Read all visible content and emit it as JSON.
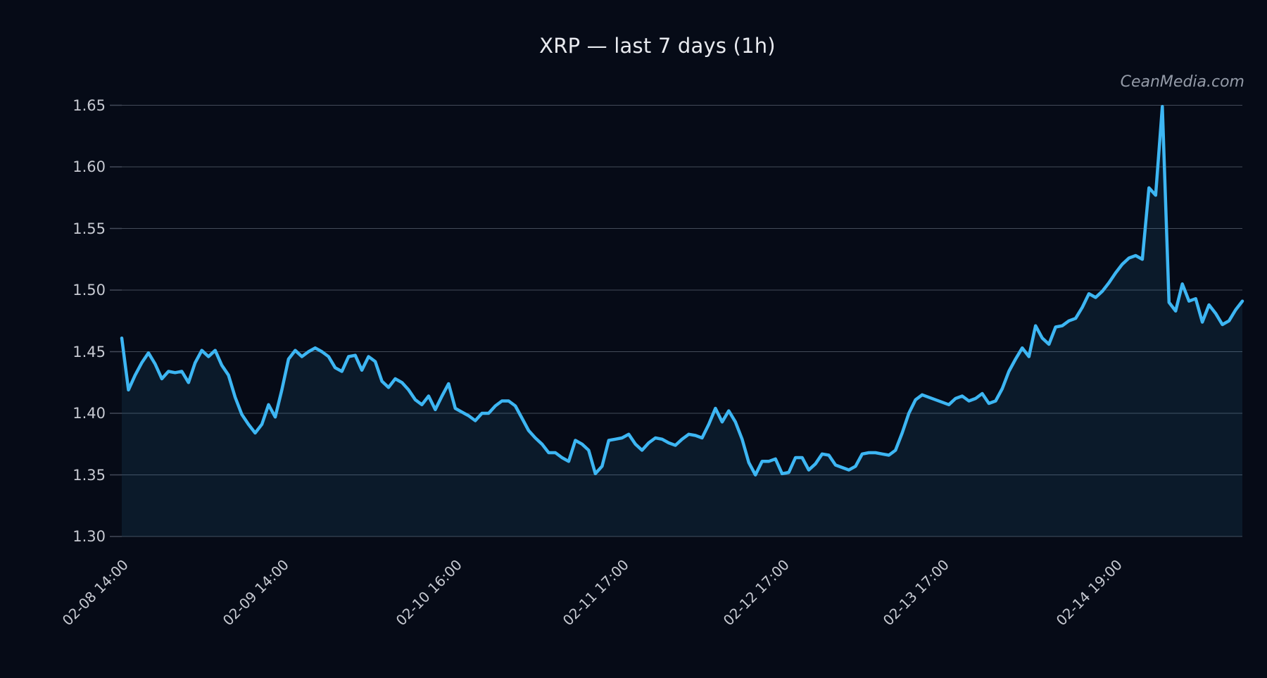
{
  "title": "XRP — last 7 days (1h)",
  "watermark": "CeanMedia.com",
  "colors": {
    "background": "#060b17",
    "line": "#3db6f3",
    "area_fill": "rgba(61,182,243,0.09)",
    "grid": "#434b59",
    "tick_label": "#c6c9d1",
    "title_text": "#e8eaef",
    "watermark_text": "#949ba8"
  },
  "chart_data": {
    "type": "line",
    "title": "XRP — last 7 days (1h)",
    "xlabel": "",
    "ylabel": "",
    "ylim": [
      1.3,
      1.65
    ],
    "grid": true,
    "legend": false,
    "area_under_line": true,
    "interval": "1h",
    "x_start_time": "02-08 13:00",
    "y_ticks": [
      1.3,
      1.35,
      1.4,
      1.45,
      1.5,
      1.55,
      1.6,
      1.65
    ],
    "x_ticks": [
      {
        "label": "02-08 14:00",
        "index": 1
      },
      {
        "label": "02-09 14:00",
        "index": 25
      },
      {
        "label": "02-10 16:00",
        "index": 51
      },
      {
        "label": "02-11 17:00",
        "index": 76
      },
      {
        "label": "02-12 17:00",
        "index": 100
      },
      {
        "label": "02-13 17:00",
        "index": 124
      },
      {
        "label": "02-14 19:00",
        "index": 150
      }
    ],
    "series": [
      {
        "name": "XRP",
        "values": [
          1.461,
          1.419,
          1.431,
          1.441,
          1.449,
          1.44,
          1.428,
          1.434,
          1.433,
          1.434,
          1.425,
          1.441,
          1.451,
          1.446,
          1.451,
          1.439,
          1.431,
          1.413,
          1.399,
          1.391,
          1.384,
          1.391,
          1.407,
          1.397,
          1.419,
          1.444,
          1.451,
          1.446,
          1.45,
          1.453,
          1.45,
          1.446,
          1.437,
          1.434,
          1.446,
          1.447,
          1.435,
          1.446,
          1.442,
          1.426,
          1.421,
          1.428,
          1.425,
          1.419,
          1.411,
          1.407,
          1.414,
          1.403,
          1.414,
          1.424,
          1.404,
          1.401,
          1.398,
          1.394,
          1.4,
          1.4,
          1.406,
          1.41,
          1.41,
          1.406,
          1.396,
          1.386,
          1.38,
          1.375,
          1.368,
          1.368,
          1.364,
          1.361,
          1.378,
          1.375,
          1.37,
          1.351,
          1.357,
          1.378,
          1.379,
          1.38,
          1.383,
          1.375,
          1.37,
          1.376,
          1.38,
          1.379,
          1.376,
          1.374,
          1.379,
          1.383,
          1.382,
          1.38,
          1.391,
          1.404,
          1.393,
          1.402,
          1.393,
          1.379,
          1.36,
          1.35,
          1.361,
          1.361,
          1.363,
          1.351,
          1.352,
          1.364,
          1.364,
          1.354,
          1.359,
          1.367,
          1.366,
          1.358,
          1.356,
          1.354,
          1.357,
          1.367,
          1.368,
          1.368,
          1.367,
          1.366,
          1.37,
          1.384,
          1.4,
          1.411,
          1.415,
          1.413,
          1.411,
          1.409,
          1.407,
          1.412,
          1.414,
          1.41,
          1.412,
          1.416,
          1.408,
          1.41,
          1.42,
          1.434,
          1.444,
          1.453,
          1.446,
          1.471,
          1.461,
          1.456,
          1.47,
          1.471,
          1.475,
          1.477,
          1.486,
          1.497,
          1.494,
          1.499,
          1.506,
          1.514,
          1.521,
          1.526,
          1.528,
          1.525,
          1.583,
          1.577,
          1.649,
          1.49,
          1.483,
          1.505,
          1.491,
          1.493,
          1.474,
          1.488,
          1.481,
          1.472,
          1.475,
          1.484,
          1.491
        ]
      }
    ]
  }
}
